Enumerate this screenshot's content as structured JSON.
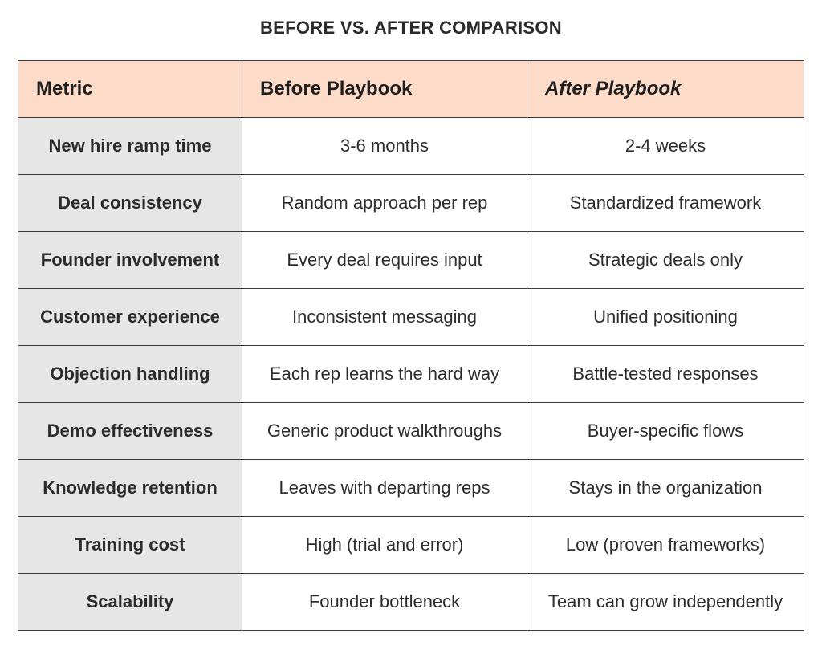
{
  "title": "BEFORE VS. AFTER COMPARISON",
  "headers": {
    "metric": "Metric",
    "before": "Before Playbook",
    "after": "After Playbook"
  },
  "rows": [
    {
      "metric": "New hire ramp time",
      "before": "3-6 months",
      "after": "2-4 weeks"
    },
    {
      "metric": "Deal consistency",
      "before": "Random approach per rep",
      "after": "Standardized framework"
    },
    {
      "metric": "Founder involvement",
      "before": "Every deal requires input",
      "after": "Strategic deals only"
    },
    {
      "metric": "Customer experience",
      "before": "Inconsistent messaging",
      "after": "Unified positioning"
    },
    {
      "metric": "Objection handling",
      "before": "Each rep learns the hard way",
      "after": "Battle-tested responses"
    },
    {
      "metric": "Demo effectiveness",
      "before": "Generic product walkthroughs",
      "after": "Buyer-specific flows"
    },
    {
      "metric": "Knowledge retention",
      "before": "Leaves with departing reps",
      "after": "Stays in the organization"
    },
    {
      "metric": "Training cost",
      "before": "High (trial and error)",
      "after": "Low (proven frameworks)"
    },
    {
      "metric": "Scalability",
      "before": "Founder bottleneck",
      "after": "Team can grow independently"
    }
  ],
  "colors": {
    "header_bg": "#fcdcc9",
    "metric_bg": "#e6e6e6",
    "border": "#3a3a3a"
  }
}
